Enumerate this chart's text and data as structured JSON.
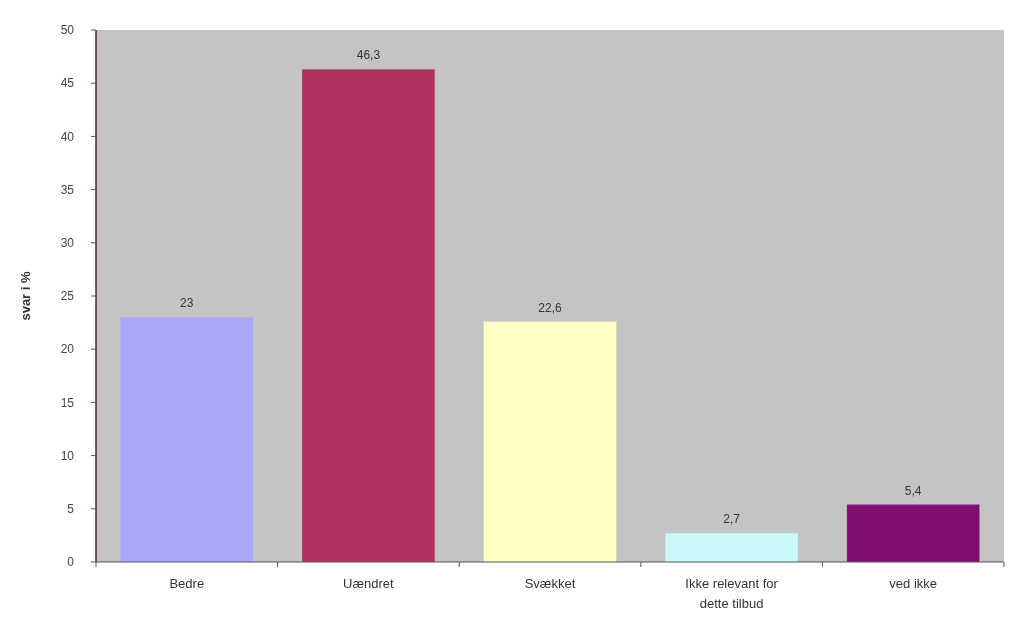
{
  "chart_data": {
    "type": "bar",
    "ylabel": "svar i %",
    "categories": [
      "Bedre",
      "Uændret",
      "Svækket",
      "Ikke relevant for dette tilbud",
      "ved ikke"
    ],
    "values": [
      23,
      46.3,
      22.6,
      2.7,
      5.4
    ],
    "colors": [
      "#a8a8f8",
      "#b03060",
      "#ffffc4",
      "#c8f8f8",
      "#801070"
    ],
    "value_labels": [
      "23",
      "46,3",
      "22,6",
      "2,7",
      "5,4"
    ],
    "ylim": [
      0,
      50
    ],
    "yticks": [
      0,
      5,
      10,
      15,
      20,
      25,
      30,
      35,
      40,
      45,
      50
    ],
    "grid": false
  }
}
